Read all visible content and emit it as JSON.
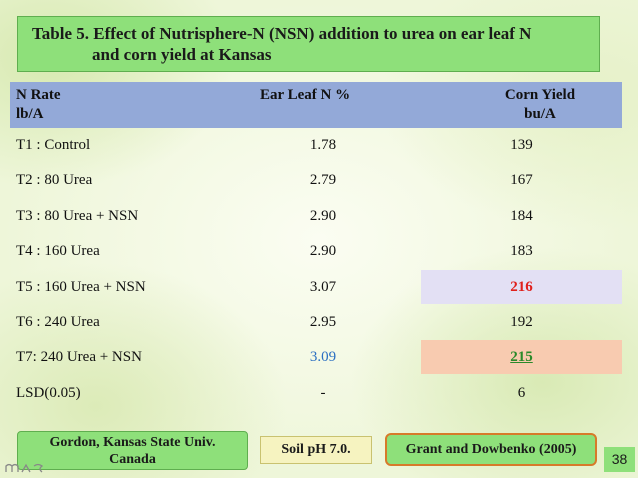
{
  "title": {
    "line1": "Table 5. Effect of Nutrisphere-N (NSN) addition to urea on ear leaf N",
    "line2": "and corn yield at Kansas"
  },
  "table": {
    "headers": {
      "col1_line1": "N Rate",
      "col1_line2": "lb/A",
      "col2_line1": "Ear Leaf N %",
      "col3_line1": "Corn Yield",
      "col3_line2": "bu/A"
    },
    "rows": [
      {
        "treatment": "T1 : Control",
        "ear_leaf_n": "1.78",
        "corn_yield": "139"
      },
      {
        "treatment": "T2  : 80 Urea",
        "ear_leaf_n": "2.79",
        "corn_yield": "167"
      },
      {
        "treatment": "T3 : 80 Urea + NSN",
        "ear_leaf_n": "2.90",
        "corn_yield": "184"
      },
      {
        "treatment": "T4 : 160 Urea",
        "ear_leaf_n": "2.90",
        "corn_yield": "183"
      },
      {
        "treatment": "T5 : 160 Urea + NSN",
        "ear_leaf_n": "3.07",
        "corn_yield": "216"
      },
      {
        "treatment": "T6 : 240 Urea",
        "ear_leaf_n": "2.95",
        "corn_yield": "192"
      },
      {
        "treatment": " T7: 240 Urea + NSN",
        "ear_leaf_n": "3.09",
        "corn_yield": "215"
      },
      {
        "treatment": "LSD(0.05)",
        "ear_leaf_n": "-",
        "corn_yield": "6"
      }
    ]
  },
  "footer": {
    "source_line1": "Gordon, Kansas State Univ.",
    "source_line2": "Canada",
    "soil_ph": "Soil pH 7.0.",
    "citation": "Grant and Dowbenko (2005)",
    "page_number": "38"
  },
  "colors": {
    "title_bg": "#8ee07a",
    "header_bg": "#93a9d8",
    "highlight_t5": "#e3e0f4",
    "highlight_t7": "#f8cbb0",
    "red_value": "#e0201c",
    "green_value": "#2a8a2a",
    "blue_value": "#2a6fc2"
  }
}
